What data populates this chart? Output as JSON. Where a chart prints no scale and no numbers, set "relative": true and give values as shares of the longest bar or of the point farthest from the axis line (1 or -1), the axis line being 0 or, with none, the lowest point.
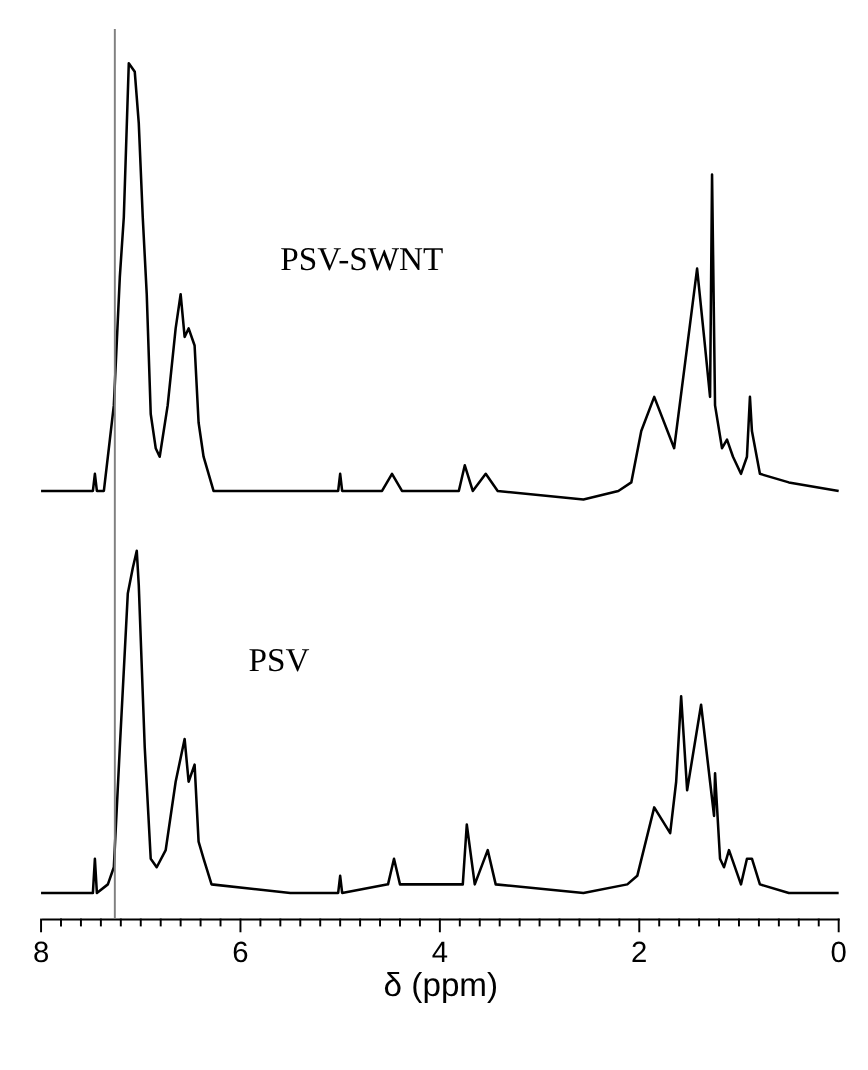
{
  "chart_data": {
    "type": "line",
    "relative": true,
    "xlabel": "δ (ppm)",
    "xlim": [
      8,
      0
    ],
    "xticks": [
      8,
      {
        "value": 7.8,
        "label": null
      },
      {
        "value": 7.6,
        "label": null
      },
      {
        "value": 7.4,
        "label": null
      },
      {
        "value": 7.2,
        "label": null
      },
      {
        "value": 7.0,
        "label": null
      },
      {
        "value": 6.8,
        "label": null
      },
      {
        "value": 6.6,
        "label": null
      },
      {
        "value": 6.4,
        "label": null
      },
      {
        "value": 6.2,
        "label": null
      },
      6,
      {
        "value": 5.8,
        "label": null
      },
      {
        "value": 5.6,
        "label": null
      },
      {
        "value": 5.4,
        "label": null
      },
      {
        "value": 5.2,
        "label": null
      },
      {
        "value": 5.0,
        "label": null
      },
      {
        "value": 4.8,
        "label": null
      },
      {
        "value": 4.6,
        "label": null
      },
      {
        "value": 4.4,
        "label": null
      },
      {
        "value": 4.2,
        "label": null
      },
      4,
      {
        "value": 3.8,
        "label": null
      },
      {
        "value": 3.6,
        "label": null
      },
      {
        "value": 3.4,
        "label": null
      },
      {
        "value": 3.2,
        "label": null
      },
      {
        "value": 3.0,
        "label": null
      },
      {
        "value": 2.8,
        "label": null
      },
      {
        "value": 2.6,
        "label": null
      },
      {
        "value": 2.4,
        "label": null
      },
      {
        "value": 2.2,
        "label": null
      },
      2,
      {
        "value": 1.8,
        "label": null
      },
      {
        "value": 1.6,
        "label": null
      },
      {
        "value": 1.4,
        "label": null
      },
      {
        "value": 1.2,
        "label": null
      },
      {
        "value": 1.0,
        "label": null
      },
      {
        "value": 0.8,
        "label": null
      },
      {
        "value": 0.6,
        "label": null
      },
      {
        "value": 0.4,
        "label": null
      },
      {
        "value": 0.2,
        "label": null
      },
      0
    ],
    "tick_labels": "x",
    "grid": false,
    "marker": "none",
    "line_style": "solid",
    "ref_lines": [
      {
        "axis": "x",
        "value": 7.26,
        "color": "#808080"
      }
    ],
    "series": [
      {
        "name": "PSV-SWNT",
        "color": "#000000",
        "x": [
          8.0,
          7.48,
          7.46,
          7.44,
          7.37,
          7.31,
          7.27,
          7.21,
          7.17,
          7.12,
          7.06,
          7.02,
          6.98,
          6.94,
          6.9,
          6.85,
          6.81,
          6.73,
          6.65,
          6.6,
          6.56,
          6.52,
          6.46,
          6.42,
          6.37,
          6.27,
          5.5,
          5.02,
          5.0,
          4.98,
          4.58,
          4.48,
          4.38,
          4.29,
          3.81,
          3.75,
          3.67,
          3.54,
          3.42,
          2.56,
          2.21,
          2.08,
          1.98,
          1.85,
          1.65,
          1.54,
          1.42,
          1.35,
          1.29,
          1.27,
          1.24,
          1.17,
          1.12,
          1.06,
          0.98,
          0.92,
          0.89,
          0.87,
          0.79,
          0.5,
          0.0
        ],
        "values": [
          0.5,
          0.5,
          0.52,
          0.5,
          0.5,
          0.56,
          0.6,
          0.75,
          0.82,
          1.0,
          0.99,
          0.93,
          0.82,
          0.73,
          0.59,
          0.55,
          0.54,
          0.6,
          0.69,
          0.73,
          0.68,
          0.69,
          0.67,
          0.58,
          0.54,
          0.5,
          0.5,
          0.5,
          0.52,
          0.5,
          0.5,
          0.52,
          0.5,
          0.5,
          0.5,
          0.53,
          0.5,
          0.52,
          0.5,
          0.49,
          0.5,
          0.51,
          0.57,
          0.61,
          0.55,
          0.65,
          0.76,
          0.68,
          0.61,
          0.87,
          0.6,
          0.55,
          0.56,
          0.54,
          0.52,
          0.54,
          0.61,
          0.57,
          0.52,
          0.51,
          0.5
        ]
      },
      {
        "name": "PSV",
        "color": "#000000",
        "x": [
          8.0,
          7.48,
          7.46,
          7.44,
          7.33,
          7.27,
          7.21,
          7.13,
          7.08,
          7.04,
          7.02,
          6.96,
          6.9,
          6.84,
          6.75,
          6.65,
          6.56,
          6.52,
          6.46,
          6.42,
          6.37,
          6.29,
          5.5,
          5.02,
          5.0,
          4.98,
          4.52,
          4.46,
          4.4,
          3.77,
          3.73,
          3.65,
          3.52,
          3.44,
          2.56,
          2.12,
          2.02,
          1.85,
          1.69,
          1.63,
          1.58,
          1.52,
          1.38,
          1.29,
          1.25,
          1.24,
          1.19,
          1.15,
          1.1,
          0.98,
          0.92,
          0.87,
          0.79,
          0.5,
          0.0
        ],
        "values": [
          0.03,
          0.03,
          0.07,
          0.03,
          0.04,
          0.06,
          0.2,
          0.38,
          0.41,
          0.43,
          0.39,
          0.2,
          0.07,
          0.06,
          0.08,
          0.16,
          0.21,
          0.16,
          0.18,
          0.09,
          0.07,
          0.04,
          0.03,
          0.03,
          0.05,
          0.03,
          0.04,
          0.07,
          0.04,
          0.04,
          0.11,
          0.04,
          0.08,
          0.04,
          0.03,
          0.04,
          0.05,
          0.13,
          0.1,
          0.16,
          0.26,
          0.15,
          0.25,
          0.16,
          0.12,
          0.17,
          0.07,
          0.06,
          0.08,
          0.04,
          0.07,
          0.07,
          0.04,
          0.03,
          0.03
        ]
      }
    ]
  }
}
